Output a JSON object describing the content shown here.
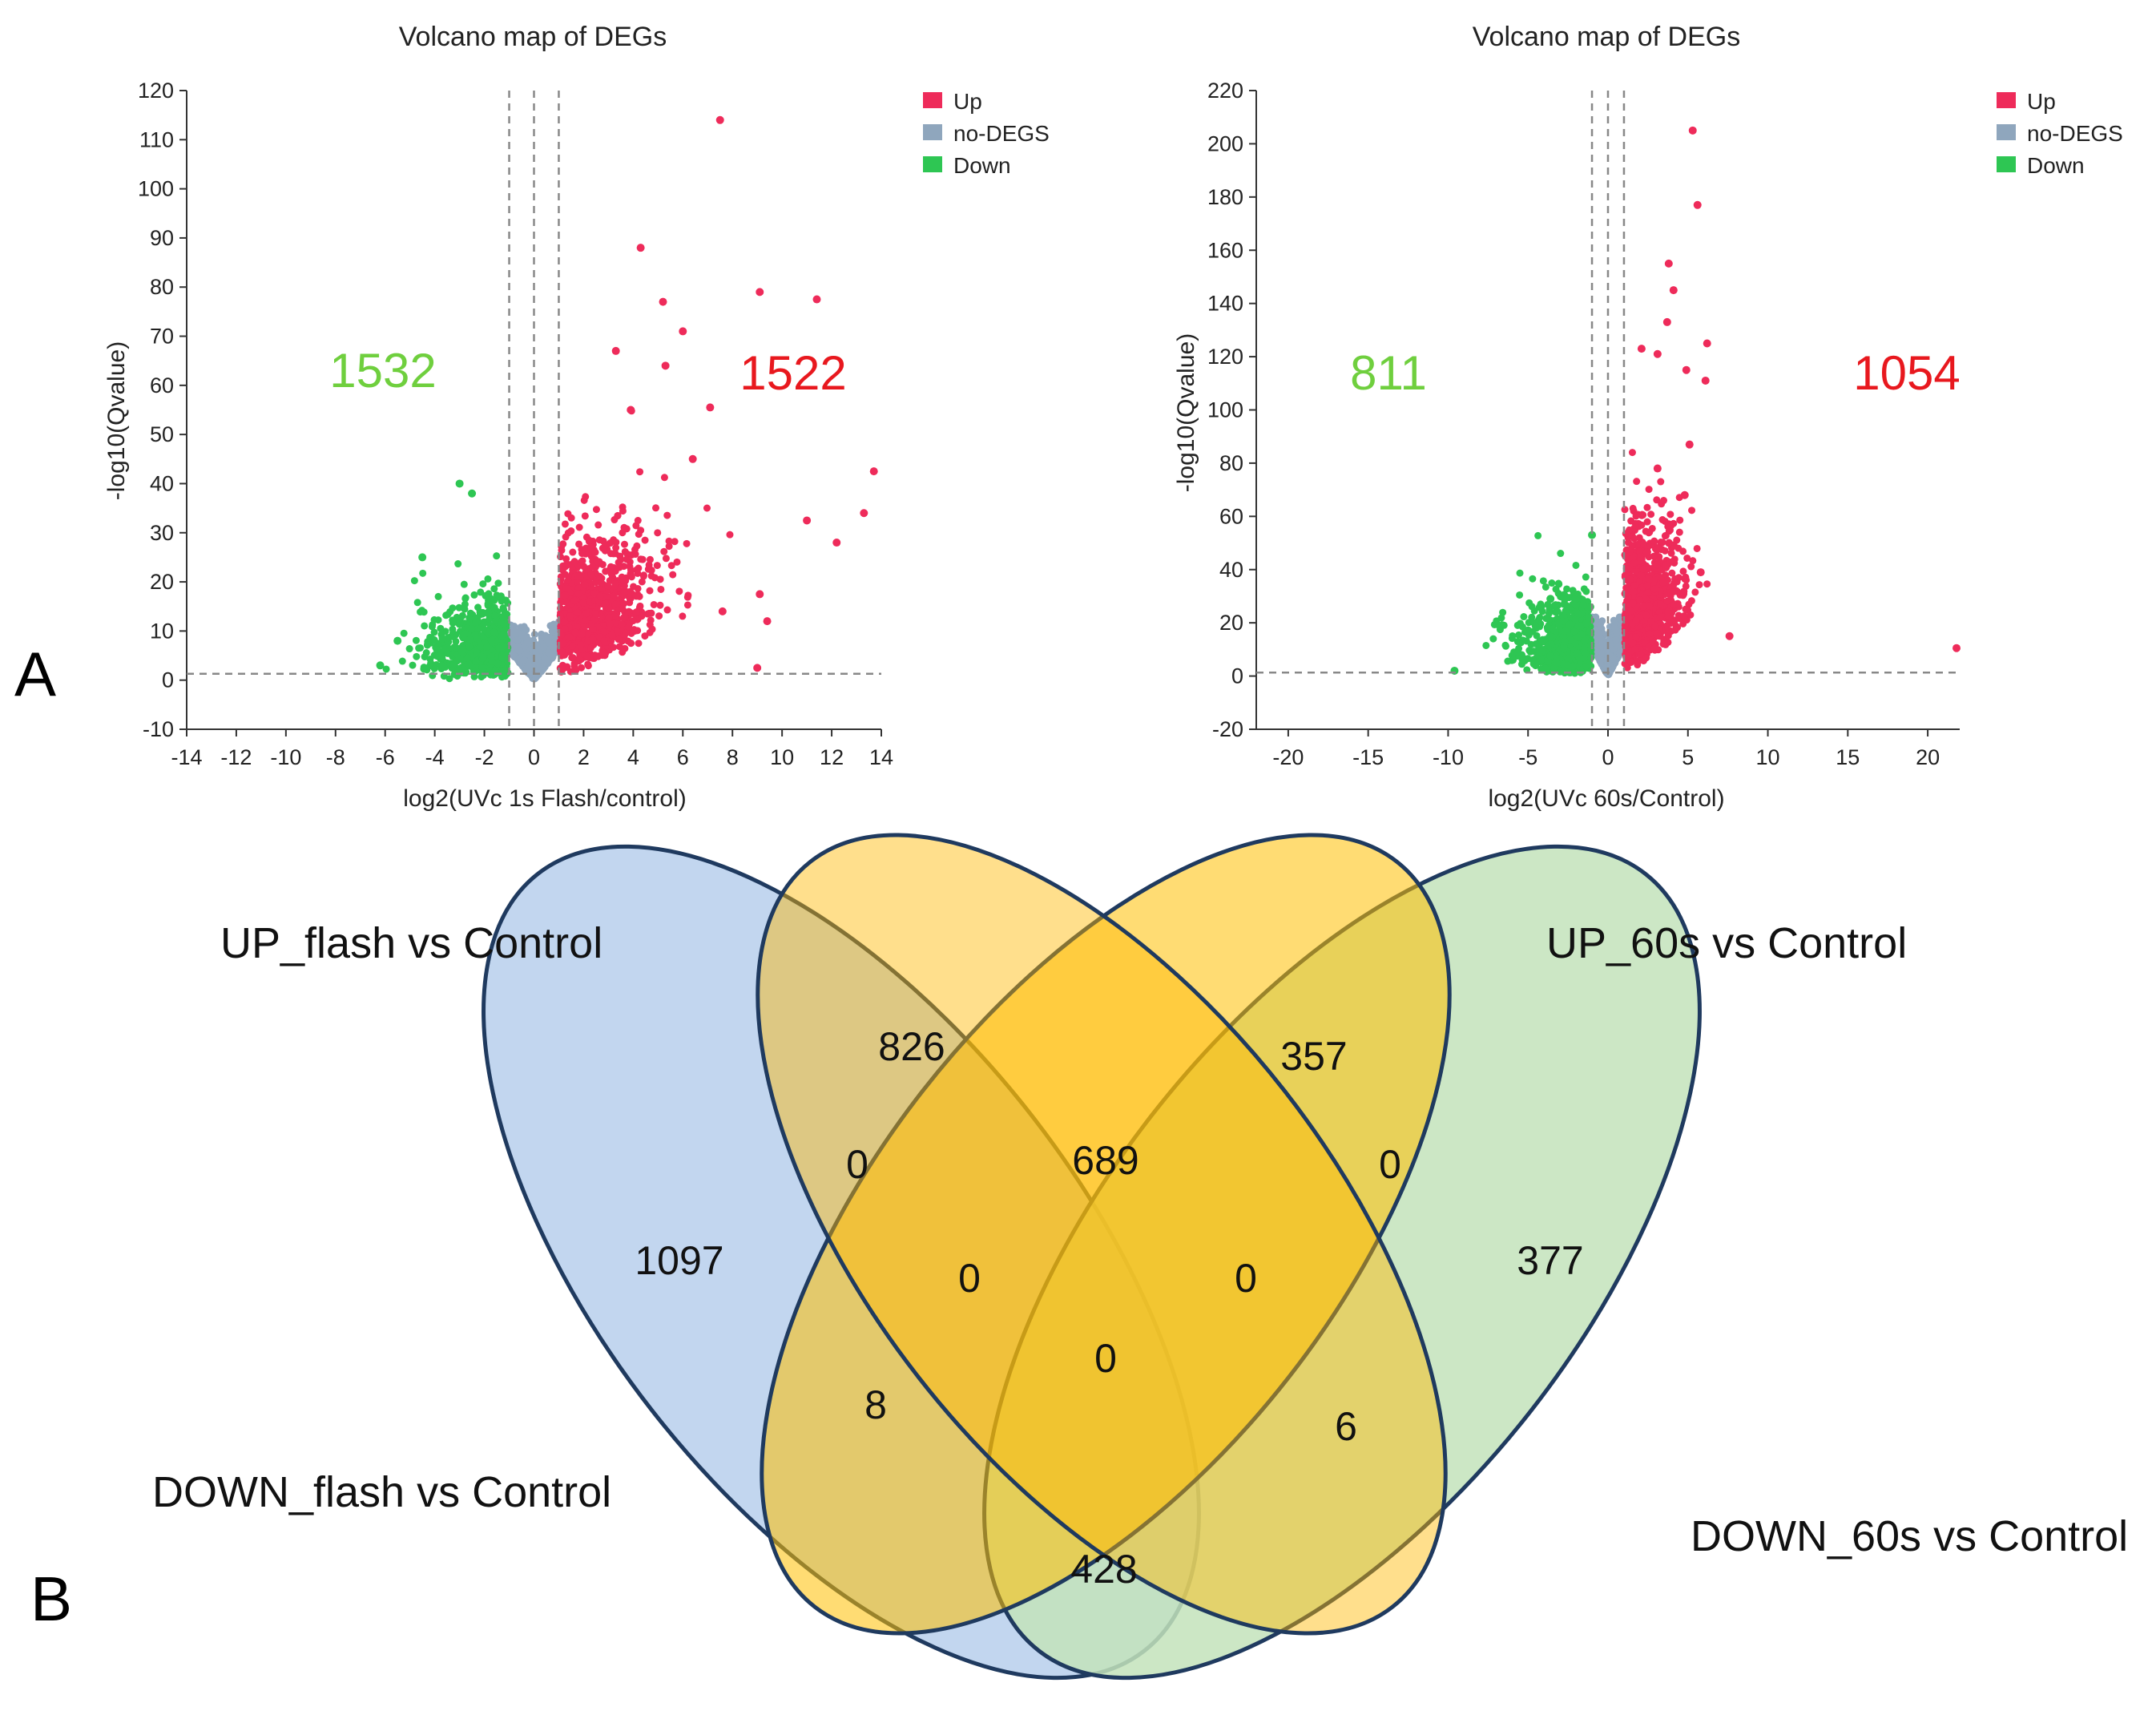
{
  "panels": {
    "a_letter": "A",
    "b_letter": "B"
  },
  "colors": {
    "up": "#ee2b5a",
    "nodeg": "#8fa6bd",
    "down": "#2ec653",
    "down_text": "#6fcf3e",
    "up_text": "#e8181e"
  },
  "chart_data": [
    {
      "type": "scatter",
      "title": "Volcano map of DEGs",
      "xlabel": "log2(UVc 1s Flash/control)",
      "ylabel": "-log10(Qvalue)",
      "xlim": [
        -14,
        14
      ],
      "ylim": [
        -10,
        120
      ],
      "xticks": [
        "-14",
        "-12",
        "-10",
        "-8",
        "-6",
        "-4",
        "-2",
        "0",
        "2",
        "4",
        "6",
        "8",
        "10",
        "12",
        "14"
      ],
      "yticks": [
        "-10",
        "0",
        "10",
        "20",
        "30",
        "40",
        "50",
        "60",
        "70",
        "80",
        "90",
        "100",
        "110",
        "120"
      ],
      "fc_threshold": 1,
      "q_threshold": 1.3,
      "legend": [
        "Up",
        "no-DEGS",
        "Down"
      ],
      "down_count": "1532",
      "up_count": "1522",
      "seed": 7,
      "highlight_points": [
        [
          7.5,
          114
        ],
        [
          4.3,
          88
        ],
        [
          9.1,
          79
        ],
        [
          11.4,
          77.5
        ],
        [
          5.2,
          77
        ],
        [
          6,
          71
        ],
        [
          3.3,
          67
        ],
        [
          5.3,
          64
        ],
        [
          7.1,
          55.5
        ],
        [
          3.9,
          55
        ],
        [
          6.4,
          45
        ],
        [
          13.7,
          42.5
        ],
        [
          11,
          32.5
        ],
        [
          12.2,
          28
        ],
        [
          13.3,
          34
        ],
        [
          9.1,
          17.5
        ],
        [
          9.4,
          12
        ],
        [
          7.6,
          14
        ],
        [
          9,
          2.5
        ],
        [
          -3,
          40
        ],
        [
          -2.5,
          38
        ],
        [
          -4.5,
          25
        ],
        [
          -5.5,
          8
        ],
        [
          -6.2,
          3
        ]
      ]
    },
    {
      "type": "scatter",
      "title": "Volcano map of DEGs",
      "xlabel": "log2(UVc 60s/Control)",
      "ylabel": "-log10(Qvalue)",
      "xlim": [
        -22,
        22
      ],
      "ylim": [
        -20,
        220
      ],
      "xticks": [
        "-20",
        "-15",
        "-10",
        "-5",
        "0",
        "5",
        "10",
        "15",
        "20"
      ],
      "yticks": [
        "-20",
        "0",
        "20",
        "40",
        "60",
        "80",
        "100",
        "120",
        "140",
        "160",
        "180",
        "200",
        "220"
      ],
      "fc_threshold": 1,
      "q_threshold": 1.3,
      "legend": [
        "Up",
        "no-DEGS",
        "Down"
      ],
      "down_count": "811",
      "up_count": "1054",
      "seed": 11,
      "highlight_points": [
        [
          5.3,
          205
        ],
        [
          5.6,
          177
        ],
        [
          3.8,
          155
        ],
        [
          4.1,
          145
        ],
        [
          3.7,
          133
        ],
        [
          6.2,
          125
        ],
        [
          2.1,
          123
        ],
        [
          3.1,
          121
        ],
        [
          4.9,
          115
        ],
        [
          6.1,
          111
        ],
        [
          5.1,
          87
        ],
        [
          3.1,
          78
        ],
        [
          4.8,
          68
        ],
        [
          3.8,
          57
        ],
        [
          5.8,
          39
        ],
        [
          7.6,
          15
        ],
        [
          21.8,
          10.5
        ],
        [
          -9.6,
          2
        ],
        [
          -3.6,
          29
        ],
        [
          -1,
          53
        ]
      ]
    },
    {
      "type": "venn",
      "sets": [
        "UP_flash vs Control",
        "UP_60s vs Control",
        "DOWN_flash vs Control",
        "DOWN_60s vs Control"
      ],
      "regions": {
        "up_flash_only": "826",
        "up_60s_only": "357",
        "down_flash_only": "1097",
        "down_60s_only": "377",
        "upflash_upsixty": "689",
        "upflash_downflash": "0",
        "upsixty_downsixty": "0",
        "upflash_upsixty_downflash": "0",
        "upflash_upsixty_downsixty": "0",
        "all_four": "0",
        "downflash_upsixty": "8",
        "upflash_downsixty": "6",
        "downflash_downsixty": "428"
      }
    }
  ]
}
